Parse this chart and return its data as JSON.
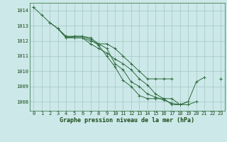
{
  "title": "Graphe pression niveau de la mer (hPa)",
  "background_color": "#cce8e8",
  "grid_color": "#aacccc",
  "line_color": "#2d6b3c",
  "xlim": [
    -0.5,
    23.5
  ],
  "ylim": [
    1007.4,
    1014.5
  ],
  "yticks": [
    1008,
    1009,
    1010,
    1011,
    1012,
    1013,
    1014
  ],
  "xticks": [
    0,
    1,
    2,
    3,
    4,
    5,
    6,
    7,
    8,
    9,
    10,
    11,
    12,
    13,
    14,
    15,
    16,
    17,
    18,
    19,
    20,
    21,
    22,
    23
  ],
  "series": [
    [
      1014.2,
      1013.7,
      1013.2,
      1012.8,
      1012.3,
      1012.2,
      1012.2,
      1011.8,
      1011.5,
      1011.2,
      1010.8,
      1010.5,
      1010.1,
      1009.5,
      1009.1,
      1008.5,
      1008.2,
      1008.2,
      1007.8,
      1008.0,
      1009.3,
      1009.6,
      null,
      null
    ],
    [
      1014.2,
      null,
      1013.2,
      1012.8,
      1012.2,
      1012.3,
      1012.3,
      1012.1,
      1011.7,
      1011.0,
      1010.3,
      1009.4,
      1009.0,
      1008.4,
      1008.2,
      1008.2,
      1008.2,
      1007.8,
      1007.8,
      1008.0,
      null,
      null,
      null,
      1009.5
    ],
    [
      1014.2,
      null,
      null,
      1012.8,
      1012.2,
      1012.2,
      1012.2,
      1012.0,
      1011.8,
      1011.5,
      1010.5,
      1010.1,
      1009.3,
      1009.0,
      1008.5,
      1008.3,
      1008.1,
      1007.9,
      1007.8,
      1007.8,
      1008.0,
      null,
      null,
      1009.5
    ],
    [
      null,
      null,
      null,
      null,
      1012.3,
      1012.3,
      1012.3,
      1012.2,
      1011.8,
      1011.8,
      1011.5,
      1011.0,
      1010.5,
      1010.0,
      1009.5,
      1009.5,
      1009.5,
      1009.5,
      null,
      null,
      null,
      null,
      null,
      null
    ]
  ],
  "title_fontsize": 6.0,
  "tick_fontsize": 5.0,
  "marker_size": 2.5,
  "line_width": 0.7
}
